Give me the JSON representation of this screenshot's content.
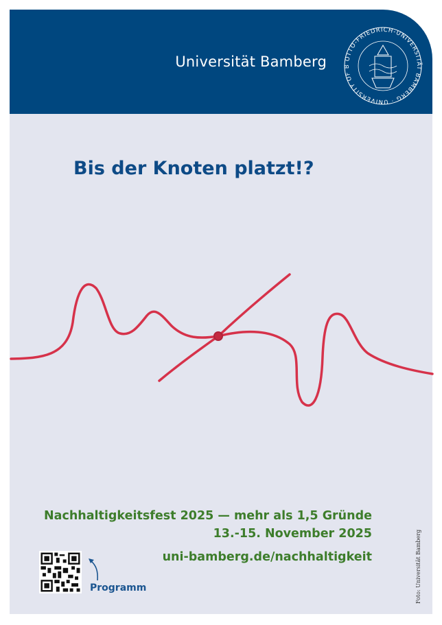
{
  "header": {
    "university_name": "Universität Bamberg",
    "seal_text": "OTTO-FRIEDRICH-UNIVERSITÄT BAMBERG · UNIVERSITY OF BAMBERG",
    "color": "#00477f"
  },
  "headline": "Bis der Knoten platzt!?",
  "event": {
    "line1": "Nachhaltigkeitsfest 2025 — mehr als 1,5 Gründe",
    "line2": "13.-15. November 2025",
    "url": "uni-bamberg.de/nachhaltigkeit",
    "color": "#3d7d2b"
  },
  "qr": {
    "label": "Programm",
    "icon": "qr-code-icon"
  },
  "photo_credit": "Foto: Universität Bamberg",
  "colors": {
    "background": "#e3e5ef",
    "ribbon": "#d6324a"
  }
}
